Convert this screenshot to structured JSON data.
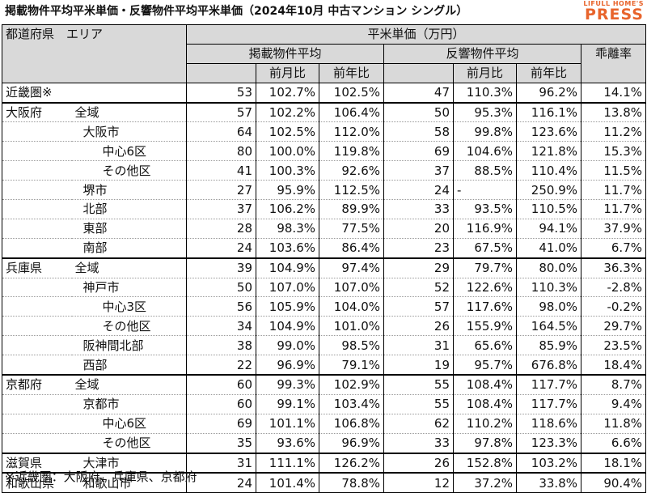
{
  "title": "掲載物件平均平米単価・反響物件平均平米単価（2024年10月 中古マンション シングル）",
  "logo": {
    "top": "LIFULL HOME'S",
    "bottom": "PRESS"
  },
  "header": {
    "pref_area": "都道府県　エリア",
    "unit_price": "平米単価（万円）",
    "listing_avg": "掲載物件平均",
    "response_avg": "反響物件平均",
    "mom": "前月比",
    "yoy": "前年比",
    "gap": "乖離率"
  },
  "rows": [
    {
      "pref": "近畿圏※",
      "area": "",
      "indent": 0,
      "l_price": "53",
      "l_mom": "102.7%",
      "l_yoy": "102.5%",
      "r_price": "47",
      "r_mom": "110.3%",
      "r_yoy": "96.2%",
      "gap": "14.1%"
    },
    {
      "pref": "大阪府",
      "area": "全域",
      "indent": 0,
      "l_price": "57",
      "l_mom": "102.2%",
      "l_yoy": "106.4%",
      "r_price": "50",
      "r_mom": "95.3%",
      "r_yoy": "116.1%",
      "gap": "13.8%"
    },
    {
      "pref": "",
      "area": "大阪市",
      "indent": 1,
      "l_price": "64",
      "l_mom": "102.5%",
      "l_yoy": "112.0%",
      "r_price": "58",
      "r_mom": "99.8%",
      "r_yoy": "123.6%",
      "gap": "11.2%"
    },
    {
      "pref": "",
      "area": "中心6区",
      "indent": 2,
      "l_price": "80",
      "l_mom": "100.0%",
      "l_yoy": "119.8%",
      "r_price": "69",
      "r_mom": "104.6%",
      "r_yoy": "121.8%",
      "gap": "15.3%"
    },
    {
      "pref": "",
      "area": "その他区",
      "indent": 2,
      "l_price": "41",
      "l_mom": "100.3%",
      "l_yoy": "92.6%",
      "r_price": "37",
      "r_mom": "88.5%",
      "r_yoy": "110.4%",
      "gap": "11.5%"
    },
    {
      "pref": "",
      "area": "堺市",
      "indent": 1,
      "l_price": "27",
      "l_mom": "95.9%",
      "l_yoy": "112.5%",
      "r_price": "24",
      "r_mom": "-",
      "r_yoy": "250.9%",
      "gap": "11.7%"
    },
    {
      "pref": "",
      "area": "北部",
      "indent": 1,
      "l_price": "37",
      "l_mom": "106.2%",
      "l_yoy": "89.9%",
      "r_price": "33",
      "r_mom": "93.5%",
      "r_yoy": "110.5%",
      "gap": "11.7%"
    },
    {
      "pref": "",
      "area": "東部",
      "indent": 1,
      "l_price": "28",
      "l_mom": "98.3%",
      "l_yoy": "77.5%",
      "r_price": "20",
      "r_mom": "116.9%",
      "r_yoy": "94.1%",
      "gap": "37.9%"
    },
    {
      "pref": "",
      "area": "南部",
      "indent": 1,
      "l_price": "24",
      "l_mom": "103.6%",
      "l_yoy": "86.4%",
      "r_price": "23",
      "r_mom": "67.5%",
      "r_yoy": "41.0%",
      "gap": "6.7%"
    },
    {
      "pref": "兵庫県",
      "area": "全域",
      "indent": 0,
      "l_price": "39",
      "l_mom": "104.9%",
      "l_yoy": "97.4%",
      "r_price": "29",
      "r_mom": "79.7%",
      "r_yoy": "80.0%",
      "gap": "36.3%"
    },
    {
      "pref": "",
      "area": "神戸市",
      "indent": 1,
      "l_price": "50",
      "l_mom": "107.0%",
      "l_yoy": "107.0%",
      "r_price": "52",
      "r_mom": "122.6%",
      "r_yoy": "110.3%",
      "gap": "-2.8%"
    },
    {
      "pref": "",
      "area": "中心3区",
      "indent": 2,
      "l_price": "56",
      "l_mom": "105.9%",
      "l_yoy": "104.0%",
      "r_price": "57",
      "r_mom": "117.6%",
      "r_yoy": "98.0%",
      "gap": "-0.2%"
    },
    {
      "pref": "",
      "area": "その他区",
      "indent": 2,
      "l_price": "34",
      "l_mom": "104.9%",
      "l_yoy": "101.0%",
      "r_price": "26",
      "r_mom": "155.9%",
      "r_yoy": "164.5%",
      "gap": "29.7%"
    },
    {
      "pref": "",
      "area": "阪神間北部",
      "indent": 1,
      "l_price": "38",
      "l_mom": "99.0%",
      "l_yoy": "98.5%",
      "r_price": "31",
      "r_mom": "65.6%",
      "r_yoy": "85.9%",
      "gap": "23.5%"
    },
    {
      "pref": "",
      "area": "西部",
      "indent": 1,
      "l_price": "22",
      "l_mom": "96.9%",
      "l_yoy": "79.1%",
      "r_price": "19",
      "r_mom": "95.7%",
      "r_yoy": "676.8%",
      "gap": "18.4%"
    },
    {
      "pref": "京都府",
      "area": "全域",
      "indent": 0,
      "l_price": "60",
      "l_mom": "99.3%",
      "l_yoy": "102.9%",
      "r_price": "55",
      "r_mom": "108.4%",
      "r_yoy": "117.7%",
      "gap": "8.7%"
    },
    {
      "pref": "",
      "area": "京都市",
      "indent": 1,
      "l_price": "60",
      "l_mom": "99.1%",
      "l_yoy": "103.4%",
      "r_price": "55",
      "r_mom": "108.4%",
      "r_yoy": "117.7%",
      "gap": "9.4%"
    },
    {
      "pref": "",
      "area": "中心6区",
      "indent": 2,
      "l_price": "69",
      "l_mom": "101.1%",
      "l_yoy": "106.8%",
      "r_price": "62",
      "r_mom": "110.2%",
      "r_yoy": "118.6%",
      "gap": "11.8%"
    },
    {
      "pref": "",
      "area": "その他区",
      "indent": 2,
      "l_price": "35",
      "l_mom": "93.6%",
      "l_yoy": "96.9%",
      "r_price": "33",
      "r_mom": "97.8%",
      "r_yoy": "123.3%",
      "gap": "6.6%"
    },
    {
      "pref": "滋賀県",
      "area": "大津市",
      "indent": 1,
      "l_price": "31",
      "l_mom": "111.1%",
      "l_yoy": "126.2%",
      "r_price": "26",
      "r_mom": "152.8%",
      "r_yoy": "103.2%",
      "gap": "18.1%"
    },
    {
      "pref": "和歌山県",
      "area": "和歌山市",
      "indent": 1,
      "l_price": "24",
      "l_mom": "101.4%",
      "l_yoy": "78.8%",
      "r_price": "12",
      "r_mom": "37.2%",
      "r_yoy": "33.8%",
      "gap": "90.4%"
    }
  ],
  "group_starts": [
    1,
    9,
    15,
    19,
    20
  ],
  "note": "※近畿圏：大阪府、兵庫県、京都府"
}
